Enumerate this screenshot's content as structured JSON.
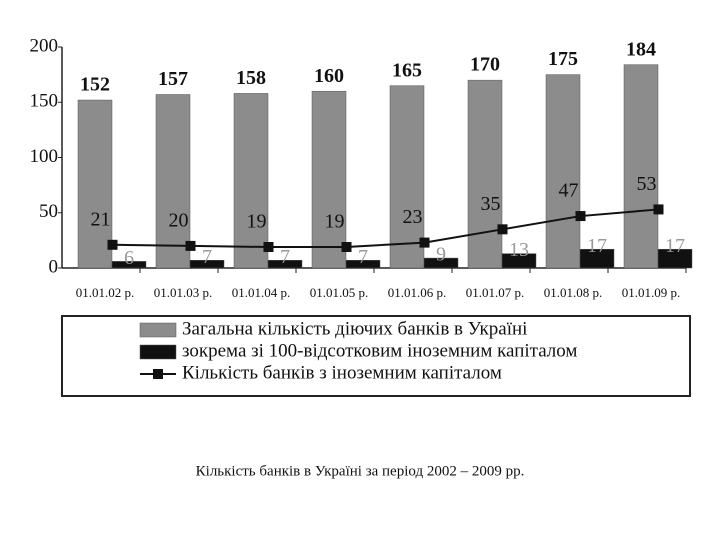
{
  "chart_data": {
    "type": "bar",
    "categories": [
      "01.01.02 р.",
      "01.01.03 р.",
      "01.01.04 р.",
      "01.01.05 р.",
      "01.01.06 р.",
      "01.01.07 р.",
      "01.01.08 р.",
      "01.01.09 р."
    ],
    "series": [
      {
        "name": "Загальна кількість діючих банків в Україні",
        "type": "bar",
        "color": "#8c8c8c",
        "values": [
          152,
          157,
          158,
          160,
          165,
          170,
          175,
          184
        ]
      },
      {
        "name": "зокрема зі 100-відсотковим іноземним капіталом",
        "type": "bar",
        "color": "#111111",
        "values": [
          6,
          7,
          7,
          7,
          9,
          13,
          17,
          17
        ]
      },
      {
        "name": "Кількість банків з іноземним капіталом",
        "type": "line",
        "color": "#111111",
        "values": [
          21,
          20,
          19,
          19,
          23,
          35,
          47,
          53
        ]
      }
    ],
    "ylim": [
      0,
      200
    ],
    "yticks": [
      0,
      50,
      100,
      150,
      200
    ],
    "caption": "Кількість банків в Україні за період 2002 – 2009 рр."
  }
}
